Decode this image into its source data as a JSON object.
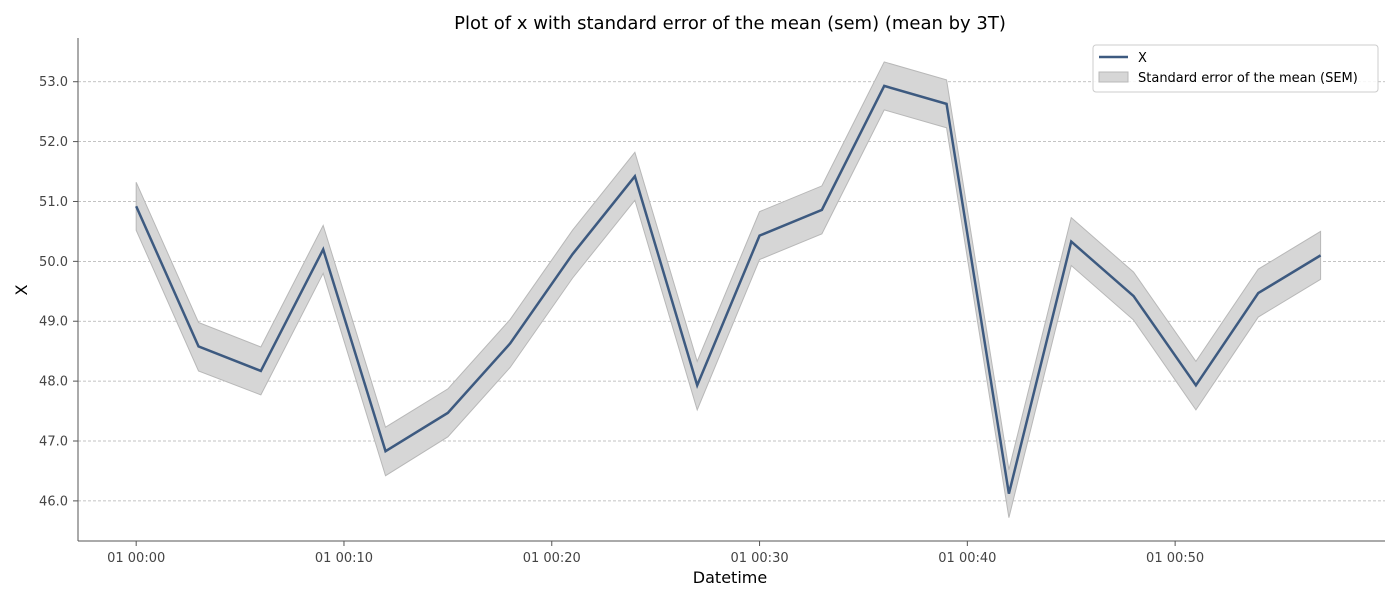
{
  "chart_data": {
    "type": "line",
    "title": "Plot of x with standard error of the mean (sem) (mean by 3T)",
    "xlabel": "Datetime",
    "ylabel": "X",
    "x_unit": "minutes",
    "x": [
      0,
      3,
      6,
      9,
      12,
      15,
      18,
      21,
      24,
      27,
      30,
      33,
      36,
      39,
      42,
      45,
      48,
      51,
      54,
      57
    ],
    "x_range": [
      -2.8,
      60.1
    ],
    "xticks": [
      0,
      10,
      20,
      30,
      40,
      50
    ],
    "xtick_labels": [
      "01 00:00",
      "01 00:10",
      "01 00:20",
      "01 00:30",
      "01 00:40",
      "01 00:50"
    ],
    "ylim": [
      45.33,
      53.73
    ],
    "yticks": [
      46.0,
      47.0,
      48.0,
      49.0,
      50.0,
      51.0,
      52.0,
      53.0
    ],
    "ytick_labels": [
      "46.0",
      "47.0",
      "48.0",
      "49.0",
      "50.0",
      "51.0",
      "52.0",
      "53.0"
    ],
    "grid": "horizontal dashed",
    "legend_position": "top-right",
    "series": [
      {
        "name": "X",
        "color": "#3d5a80",
        "values": [
          50.92,
          48.58,
          48.17,
          50.2,
          46.83,
          47.47,
          48.63,
          50.12,
          51.42,
          47.93,
          50.43,
          50.86,
          52.93,
          52.63,
          46.12,
          50.33,
          49.42,
          47.93,
          49.47,
          50.1
        ]
      }
    ],
    "band": {
      "name": "Standard error of the mean (SEM)",
      "color": "#d6d6d6",
      "edge_color": "#b8b8b8",
      "lower": [
        50.52,
        48.17,
        47.77,
        49.8,
        46.42,
        47.07,
        48.23,
        49.72,
        51.02,
        47.52,
        50.03,
        50.46,
        52.53,
        52.23,
        45.72,
        49.93,
        49.02,
        47.52,
        49.07,
        49.7
      ],
      "upper": [
        51.32,
        48.98,
        48.57,
        50.6,
        47.23,
        47.87,
        49.03,
        50.52,
        51.82,
        48.33,
        50.83,
        51.26,
        53.33,
        53.03,
        46.52,
        50.73,
        49.82,
        48.33,
        49.87,
        50.5
      ]
    }
  }
}
